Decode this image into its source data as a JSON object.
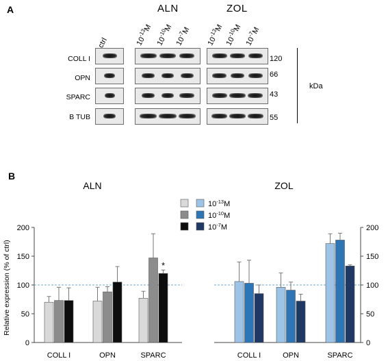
{
  "panel_a": {
    "letter": "A",
    "groups": [
      "ALN",
      "ZOL"
    ],
    "lanes": {
      "ctrl": "ctrl",
      "aln": [
        {
          "base": "10",
          "exp": "-13",
          "unit": "M"
        },
        {
          "base": "10",
          "exp": "-10",
          "unit": "M"
        },
        {
          "base": "10",
          "exp": "-7",
          "unit": "M"
        }
      ],
      "zol": [
        {
          "base": "10",
          "exp": "-13",
          "unit": "M"
        },
        {
          "base": "10",
          "exp": "-10",
          "unit": "M"
        },
        {
          "base": "10",
          "exp": "-7",
          "unit": "M"
        }
      ]
    },
    "rows": [
      {
        "label": "COLL I",
        "kda": "120"
      },
      {
        "label": "OPN",
        "kda": "66"
      },
      {
        "label": "SPARC",
        "kda": "43"
      },
      {
        "label": "B TUB",
        "kda": "55"
      }
    ],
    "kda_unit": "kDa"
  },
  "chart_data": [
    {
      "type": "bar",
      "panel_letter": "B",
      "title": "ALN",
      "categories": [
        "COLL I",
        "OPN",
        "SPARC"
      ],
      "ylabel": "Relative expression (% of ctrl)",
      "ylim": [
        0,
        200
      ],
      "yticks": [
        0,
        50,
        100,
        150,
        200
      ],
      "reference_line": 100,
      "legend": [
        {
          "base": "10",
          "exp": "-13",
          "unit": "M"
        },
        {
          "base": "10",
          "exp": "-10",
          "unit": "M"
        },
        {
          "base": "10",
          "exp": "-7",
          "unit": "M"
        }
      ],
      "series": [
        {
          "name": "10^-13 M",
          "color": "#d9d9d9",
          "values": [
            70,
            72,
            77
          ],
          "errors": [
            10,
            24,
            12
          ]
        },
        {
          "name": "10^-10 M",
          "color": "#8c8c8c",
          "values": [
            73,
            88,
            147
          ],
          "errors": [
            23,
            9,
            42
          ]
        },
        {
          "name": "10^-7 M",
          "color": "#0d0d0d",
          "values": [
            73,
            105,
            120
          ],
          "errors": [
            22,
            27,
            6
          ]
        }
      ],
      "annotations": [
        {
          "category": "SPARC",
          "series": 2,
          "text": "*"
        }
      ]
    },
    {
      "type": "bar",
      "title": "ZOL",
      "categories": [
        "COLL I",
        "OPN",
        "SPARC"
      ],
      "ylim": [
        0,
        200
      ],
      "yticks": [
        0,
        50,
        100,
        150,
        200
      ],
      "reference_line": 100,
      "legend": [
        {
          "base": "10",
          "exp": "-13",
          "unit": "M"
        },
        {
          "base": "10",
          "exp": "-10",
          "unit": "M"
        },
        {
          "base": "10",
          "exp": "-7",
          "unit": "M"
        }
      ],
      "series": [
        {
          "name": "10^-13 M",
          "color": "#9dc3e6",
          "values": [
            106,
            96,
            172
          ],
          "errors": [
            34,
            25,
            17
          ]
        },
        {
          "name": "10^-10 M",
          "color": "#2e75b6",
          "values": [
            103,
            91,
            178
          ],
          "errors": [
            40,
            14,
            12
          ]
        },
        {
          "name": "10^-7 M",
          "color": "#1f3864",
          "values": [
            85,
            72,
            133
          ],
          "errors": [
            15,
            12,
            2
          ]
        }
      ]
    }
  ]
}
